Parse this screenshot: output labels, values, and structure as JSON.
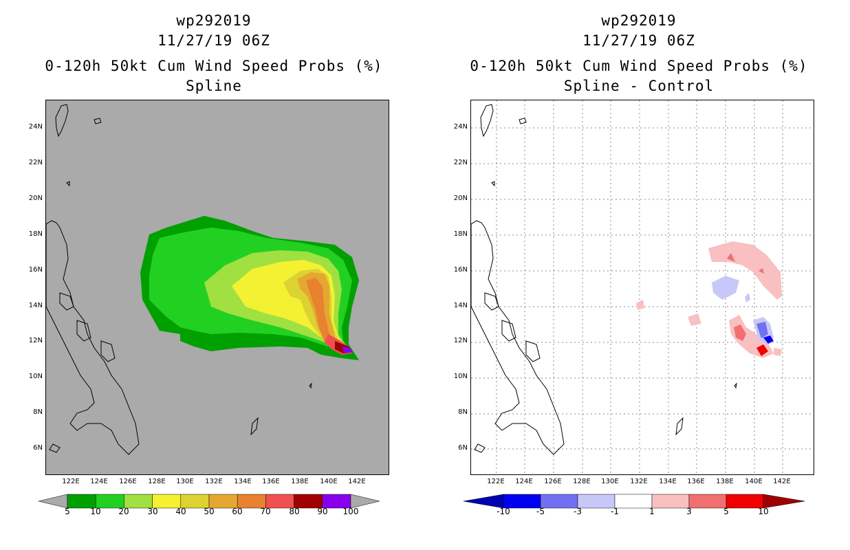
{
  "left_panel": {
    "title_line1": "wp292019",
    "title_line2": "11/27/19 06Z",
    "title_line3": "0-120h 50kt Cum Wind Speed Probs (%)",
    "title_line4": "Spline",
    "map_background": "#aaaaaa",
    "colorbar_labels": [
      "5",
      "10",
      "20",
      "30",
      "40",
      "50",
      "60",
      "70",
      "80",
      "90",
      "100"
    ],
    "colorbar_colors": [
      "#00a000",
      "#22d022",
      "#a0e040",
      "#f4f032",
      "#dcd232",
      "#e4a830",
      "#e8822e",
      "#f05050",
      "#a00000",
      "#8800ee"
    ]
  },
  "right_panel": {
    "title_line1": "wp292019",
    "title_line2": "11/27/19 06Z",
    "title_line3": "0-120h 50kt Cum Wind Speed Probs (%)",
    "title_line4": "Spline - Control",
    "map_background": "#ffffff",
    "colorbar_labels": [
      "-10",
      "-5",
      "-3",
      "-1",
      "1",
      "3",
      "5",
      "10"
    ],
    "colorbar_colors": [
      "#0000b0",
      "#0000f0",
      "#7070f0",
      "#c8c8f8",
      "#ffffff",
      "#f8c0c0",
      "#f07070",
      "#f00000",
      "#a00000"
    ]
  },
  "lat_labels": [
    "24N",
    "22N",
    "20N",
    "18N",
    "16N",
    "14N",
    "12N",
    "10N",
    "8N",
    "6N"
  ],
  "lon_labels": [
    "122E",
    "124E",
    "126E",
    "128E",
    "130E",
    "132E",
    "134E",
    "136E",
    "138E",
    "140E",
    "142E"
  ]
}
